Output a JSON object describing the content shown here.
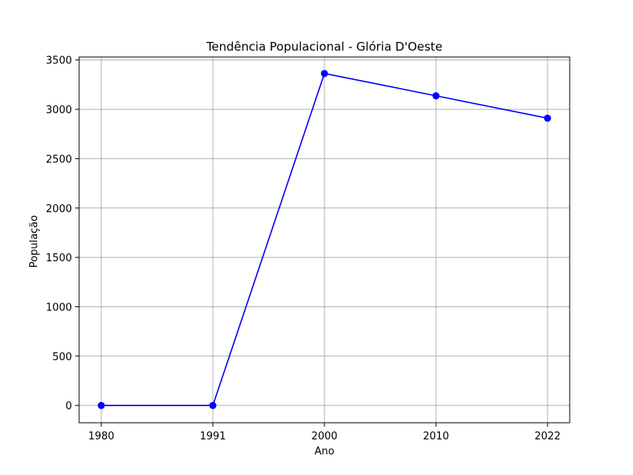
{
  "chart_data": {
    "type": "line",
    "title": "Tendência Populacional - Glória D'Oeste",
    "xlabel": "Ano",
    "ylabel": "População",
    "categories": [
      "1980",
      "1991",
      "2000",
      "2010",
      "2022"
    ],
    "series": [
      {
        "values": [
          0,
          0,
          3363,
          3137,
          2910
        ],
        "color": "#0000ff"
      }
    ],
    "ylim": [
      -175,
      3530
    ],
    "yticks": [
      0,
      500,
      1000,
      1500,
      2000,
      2500,
      3000,
      3500
    ],
    "grid": true,
    "marker": "circle"
  }
}
